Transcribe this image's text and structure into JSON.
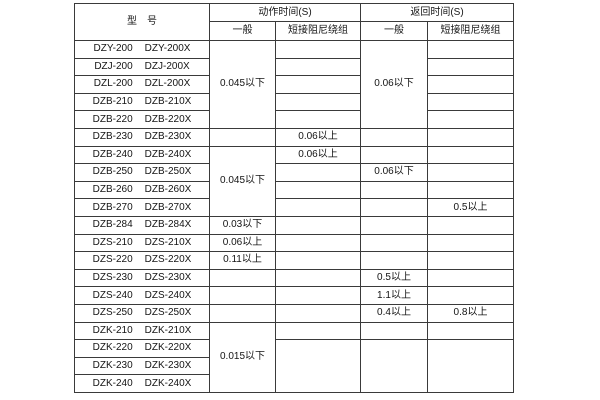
{
  "colors": {
    "background": "#ffffff",
    "border": "#3a3a3a",
    "text": "#141414"
  },
  "table": {
    "header": {
      "model": "型　号",
      "action_time": "动作时间(S)",
      "return_time": "返回时间(S)",
      "general_action": "一般",
      "damped_action": "短接阻尼绕组",
      "general_return": "一般",
      "damped_return": "短接阻尼绕组"
    },
    "rows": [
      {
        "model_a": "DZY-200",
        "model_x": "DZY-200X",
        "act_gen": "0.045以下",
        "ret_gen": "0.06以下"
      },
      {
        "model_a": "DZJ-200",
        "model_x": "DZJ-200X"
      },
      {
        "model_a": "DZL-200",
        "model_x": "DZL-200X"
      },
      {
        "model_a": "DZB-210",
        "model_x": "DZB-210X"
      },
      {
        "model_a": "DZB-220",
        "model_x": "DZB-220X"
      },
      {
        "model_a": "DZB-230",
        "model_x": "DZB-230X",
        "act_damp": "0.06以上"
      },
      {
        "model_a": "DZB-240",
        "model_x": "DZB-240X",
        "act_gen": "0.045以下",
        "act_damp": "0.06以上"
      },
      {
        "model_a": "DZB-250",
        "model_x": "DZB-250X",
        "ret_gen": "0.06以下"
      },
      {
        "model_a": "DZB-260",
        "model_x": "DZB-260X"
      },
      {
        "model_a": "DZB-270",
        "model_x": "DZB-270X",
        "ret_damp": "0.5以上"
      },
      {
        "model_a": "DZB-284",
        "model_x": "DZB-284X",
        "act_gen": "0.03以下"
      },
      {
        "model_a": "DZS-210",
        "model_x": "DZS-210X",
        "act_gen": "0.06以上"
      },
      {
        "model_a": "DZS-220",
        "model_x": "DZS-220X",
        "act_gen": "0.11以上"
      },
      {
        "model_a": "DZS-230",
        "model_x": "DZS-230X",
        "ret_gen": "0.5以上"
      },
      {
        "model_a": "DZS-240",
        "model_x": "DZS-240X",
        "ret_gen": "1.1以上"
      },
      {
        "model_a": "DZS-250",
        "model_x": "DZS-250X",
        "ret_gen": "0.4以上",
        "ret_damp": "0.8以上"
      },
      {
        "model_a": "DZK-210",
        "model_x": "DZK-210X",
        "act_gen": "0.015以下"
      },
      {
        "model_a": "DZK-220",
        "model_x": "DZK-220X"
      },
      {
        "model_a": "DZK-230",
        "model_x": "DZK-230X"
      },
      {
        "model_a": "DZK-240",
        "model_x": "DZK-240X"
      }
    ]
  }
}
